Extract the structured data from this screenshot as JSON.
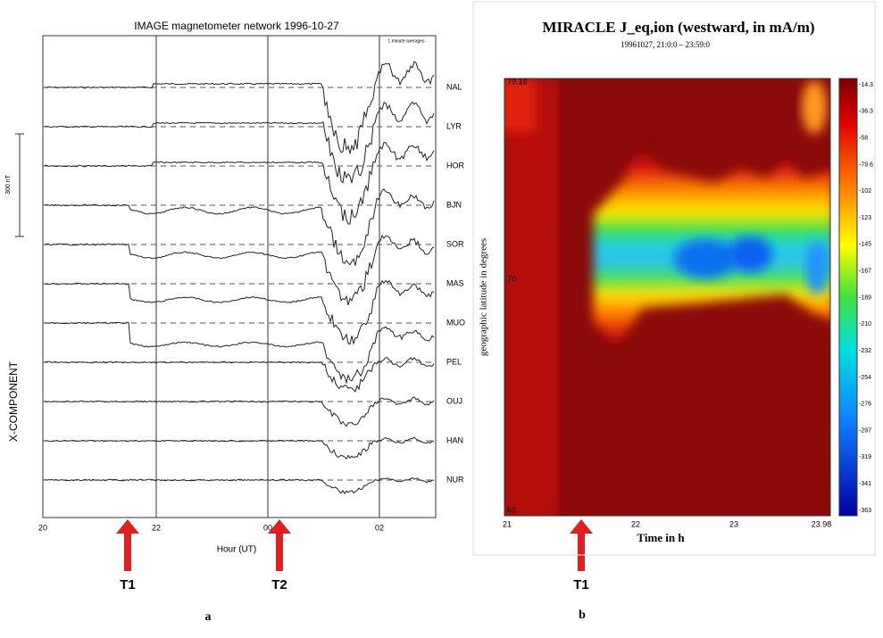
{
  "panel_a": {
    "title": "IMAGE magnetometer network 1996-10-27",
    "note": "1 minute averages",
    "scale": "300 nT",
    "y_label": "X-COMPONENT",
    "x_label": "Hour (UT)",
    "x_ticks": [
      "20",
      "22",
      "00",
      "02"
    ],
    "stations": [
      "NAL",
      "LYR",
      "HOR",
      "BJN",
      "SOR",
      "MAS",
      "MUO",
      "PEL",
      "OUJ",
      "HAN",
      "NUR"
    ],
    "markers": [
      "T1",
      "T2"
    ],
    "caption": "a"
  },
  "panel_b": {
    "title": "MIRACLE J_eq,ion (westward, in mA/m)",
    "subtitle": "19961027, 21:0:0 – 23:59:0",
    "y_label": "geographic latitude in degrees",
    "y_ticks": [
      "79.16",
      "70",
      "60"
    ],
    "x_label": "Time in h",
    "x_ticks": [
      "21",
      "22",
      "23",
      "23.98"
    ],
    "colorbar_ticks": [
      "-14.3",
      "-36.3",
      "-58",
      "-79.6",
      "-102",
      "-123",
      "-145",
      "-167",
      "-189",
      "-210",
      "-232",
      "-254",
      "-276",
      "-297",
      "-319",
      "-341",
      "-363"
    ],
    "markers": [
      "T1"
    ],
    "caption": "b"
  }
}
